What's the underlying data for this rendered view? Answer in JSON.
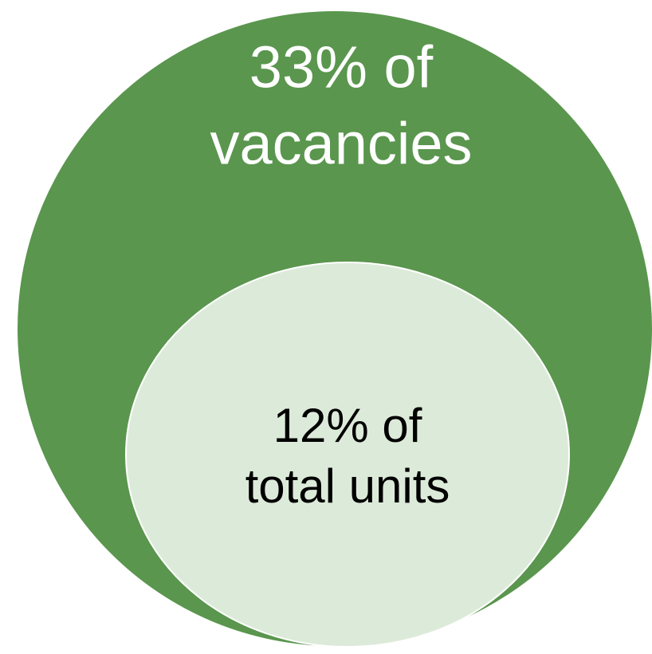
{
  "outer": {
    "label_lines": [
      "33% of",
      "vacancies"
    ]
  },
  "inner": {
    "label_lines": [
      "12% of",
      "total units"
    ]
  }
}
